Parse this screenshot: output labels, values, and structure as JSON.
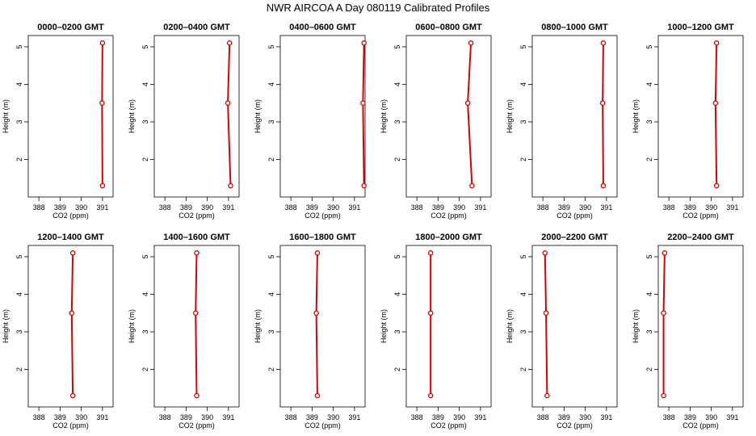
{
  "figure": {
    "title": "NWR AIRCOA A  Day 080119  Calibrated Profiles"
  },
  "colors": {
    "profile": "#dd0000",
    "axes": "#000000",
    "background": "#ffffff"
  },
  "chart_data": [
    {
      "type": "line",
      "title": "0000–0200 GMT",
      "xlabel": "CO2 (ppm)",
      "ylabel": "Height (m)",
      "xlim": [
        387.5,
        391.5
      ],
      "ylim": [
        1.0,
        5.3
      ],
      "xticks": [
        388,
        389,
        390,
        391
      ],
      "yticks": [
        2,
        3,
        4,
        5
      ],
      "series": [
        {
          "x": [
            391.0,
            390.98,
            391.0
          ],
          "y": [
            1.3,
            3.5,
            5.1
          ]
        }
      ]
    },
    {
      "type": "line",
      "title": "0200–0400 GMT",
      "xlabel": "CO2 (ppm)",
      "ylabel": "Height (m)",
      "xlim": [
        387.5,
        391.5
      ],
      "ylim": [
        1.0,
        5.3
      ],
      "xticks": [
        388,
        389,
        390,
        391
      ],
      "yticks": [
        2,
        3,
        4,
        5
      ],
      "series": [
        {
          "x": [
            391.1,
            390.97,
            391.05
          ],
          "y": [
            1.3,
            3.5,
            5.1
          ]
        }
      ]
    },
    {
      "type": "line",
      "title": "0400–0600 GMT",
      "xlabel": "CO2 (ppm)",
      "ylabel": "Height (m)",
      "xlim": [
        387.5,
        391.5
      ],
      "ylim": [
        1.0,
        5.3
      ],
      "xticks": [
        388,
        389,
        390,
        391
      ],
      "yticks": [
        2,
        3,
        4,
        5
      ],
      "series": [
        {
          "x": [
            391.45,
            391.4,
            391.45
          ],
          "y": [
            1.3,
            3.5,
            5.1
          ]
        }
      ]
    },
    {
      "type": "line",
      "title": "0600–0800 GMT",
      "xlabel": "CO2 (ppm)",
      "ylabel": "Height (m)",
      "xlim": [
        387.5,
        391.5
      ],
      "ylim": [
        1.0,
        5.3
      ],
      "xticks": [
        388,
        389,
        390,
        391
      ],
      "yticks": [
        2,
        3,
        4,
        5
      ],
      "series": [
        {
          "x": [
            390.6,
            390.4,
            390.55
          ],
          "y": [
            1.3,
            3.5,
            5.1
          ]
        }
      ]
    },
    {
      "type": "line",
      "title": "0800–1000 GMT",
      "xlabel": "CO2 (ppm)",
      "ylabel": "Height (m)",
      "xlim": [
        387.5,
        391.5
      ],
      "ylim": [
        1.0,
        5.3
      ],
      "xticks": [
        388,
        389,
        390,
        391
      ],
      "yticks": [
        2,
        3,
        4,
        5
      ],
      "series": [
        {
          "x": [
            390.85,
            390.82,
            390.85
          ],
          "y": [
            1.3,
            3.5,
            5.1
          ]
        }
      ]
    },
    {
      "type": "line",
      "title": "1000–1200 GMT",
      "xlabel": "CO2 (ppm)",
      "ylabel": "Height (m)",
      "xlim": [
        387.5,
        391.5
      ],
      "ylim": [
        1.0,
        5.3
      ],
      "xticks": [
        388,
        389,
        390,
        391
      ],
      "yticks": [
        2,
        3,
        4,
        5
      ],
      "series": [
        {
          "x": [
            390.25,
            390.2,
            390.25
          ],
          "y": [
            1.3,
            3.5,
            5.1
          ]
        }
      ]
    },
    {
      "type": "line",
      "title": "1200–1400 GMT",
      "xlabel": "CO2 (ppm)",
      "ylabel": "Height (m)",
      "xlim": [
        387.5,
        391.5
      ],
      "ylim": [
        1.0,
        5.3
      ],
      "xticks": [
        388,
        389,
        390,
        391
      ],
      "yticks": [
        2,
        3,
        4,
        5
      ],
      "series": [
        {
          "x": [
            389.6,
            389.55,
            389.6
          ],
          "y": [
            1.3,
            3.5,
            5.1
          ]
        }
      ]
    },
    {
      "type": "line",
      "title": "1400–1600 GMT",
      "xlabel": "CO2 (ppm)",
      "ylabel": "Height (m)",
      "xlim": [
        387.5,
        391.5
      ],
      "ylim": [
        1.0,
        5.3
      ],
      "xticks": [
        388,
        389,
        390,
        391
      ],
      "yticks": [
        2,
        3,
        4,
        5
      ],
      "series": [
        {
          "x": [
            389.5,
            389.45,
            389.5
          ],
          "y": [
            1.3,
            3.5,
            5.1
          ]
        }
      ]
    },
    {
      "type": "line",
      "title": "1600–1800 GMT",
      "xlabel": "CO2 (ppm)",
      "ylabel": "Height (m)",
      "xlim": [
        387.5,
        391.5
      ],
      "ylim": [
        1.0,
        5.3
      ],
      "xticks": [
        388,
        389,
        390,
        391
      ],
      "yticks": [
        2,
        3,
        4,
        5
      ],
      "series": [
        {
          "x": [
            389.25,
            389.2,
            389.25
          ],
          "y": [
            1.3,
            3.5,
            5.1
          ]
        }
      ]
    },
    {
      "type": "line",
      "title": "1800–2000 GMT",
      "xlabel": "CO2 (ppm)",
      "ylabel": "Height (m)",
      "xlim": [
        387.5,
        391.5
      ],
      "ylim": [
        1.0,
        5.3
      ],
      "xticks": [
        388,
        389,
        390,
        391
      ],
      "yticks": [
        2,
        3,
        4,
        5
      ],
      "series": [
        {
          "x": [
            388.65,
            388.65,
            388.65
          ],
          "y": [
            1.3,
            3.5,
            5.1
          ]
        }
      ]
    },
    {
      "type": "line",
      "title": "2000–2200 GMT",
      "xlabel": "CO2 (ppm)",
      "ylabel": "Height (m)",
      "xlim": [
        387.5,
        391.5
      ],
      "ylim": [
        1.0,
        5.3
      ],
      "xticks": [
        388,
        389,
        390,
        391
      ],
      "yticks": [
        2,
        3,
        4,
        5
      ],
      "series": [
        {
          "x": [
            388.2,
            388.15,
            388.1
          ],
          "y": [
            1.3,
            3.5,
            5.1
          ]
        }
      ]
    },
    {
      "type": "line",
      "title": "2200–2400 GMT",
      "xlabel": "CO2 (ppm)",
      "ylabel": "Height (m)",
      "xlim": [
        387.5,
        391.5
      ],
      "ylim": [
        1.0,
        5.3
      ],
      "xticks": [
        388,
        389,
        390,
        391
      ],
      "yticks": [
        2,
        3,
        4,
        5
      ],
      "series": [
        {
          "x": [
            387.75,
            387.75,
            387.8
          ],
          "y": [
            1.3,
            3.5,
            5.1
          ]
        }
      ]
    }
  ]
}
